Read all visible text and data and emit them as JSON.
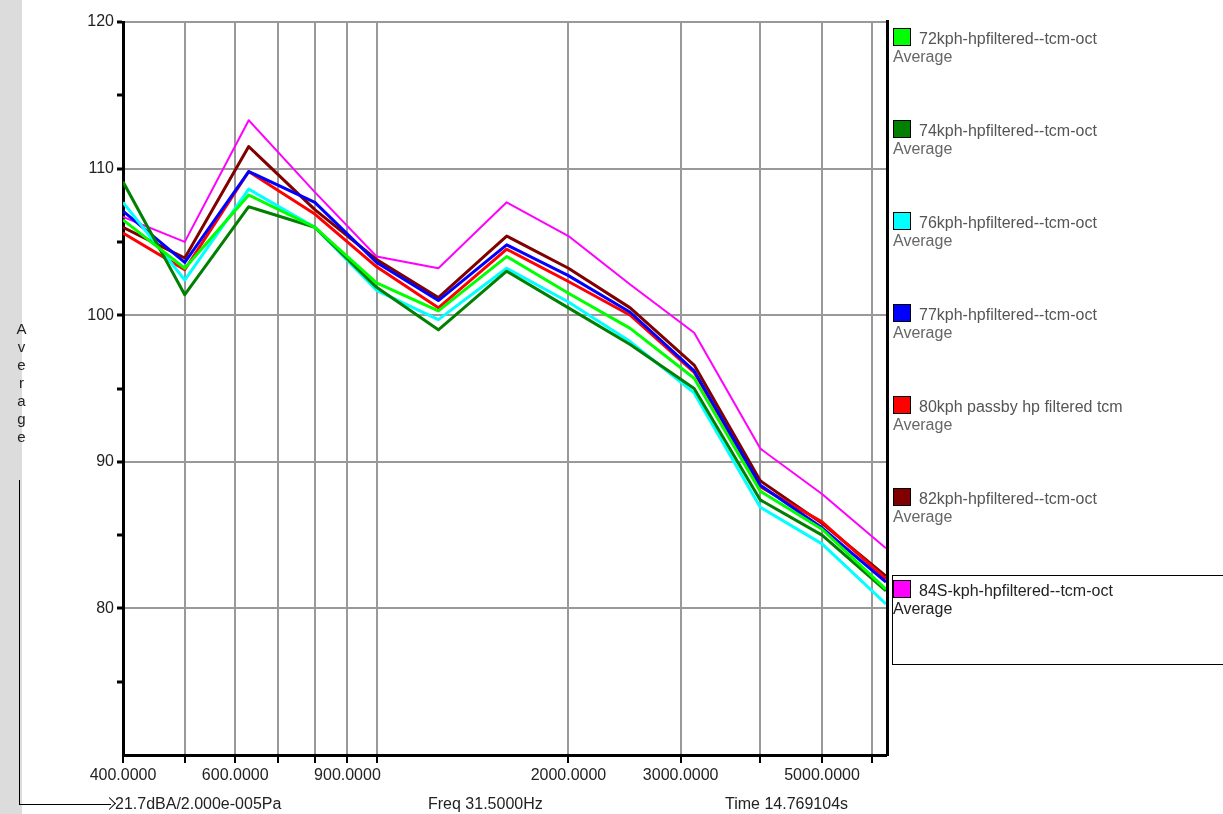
{
  "chart_data": {
    "type": "line",
    "ylabel": "Average",
    "log": "x",
    "grid": true,
    "legend": "right",
    "x": [
      400,
      500,
      630,
      800,
      1000,
      1250,
      1600,
      2000,
      2500,
      3150,
      4000,
      5000,
      6300
    ],
    "xlim": [
      400,
      6300
    ],
    "xticks": [
      {
        "value": 400,
        "label": "400.0000"
      },
      {
        "value": 500,
        "label": null
      },
      {
        "value": 600,
        "label": "600.0000"
      },
      {
        "value": 700,
        "label": null
      },
      {
        "value": 800,
        "label": null
      },
      {
        "value": 900,
        "label": "900.0000"
      },
      {
        "value": 1000,
        "label": null
      },
      {
        "value": 2000,
        "label": "2000.0000"
      },
      {
        "value": 3000,
        "label": "3000.0000"
      },
      {
        "value": 4000,
        "label": null
      },
      {
        "value": 5000,
        "label": "5000.0000"
      },
      {
        "value": 6000,
        "label": null
      }
    ],
    "ylim": [
      70,
      120
    ],
    "yticks": [
      {
        "value": 75,
        "label": null
      },
      80,
      {
        "value": 85,
        "label": null
      },
      90,
      {
        "value": 95,
        "label": null
      },
      100,
      {
        "value": 105,
        "label": null
      },
      110,
      {
        "value": 115,
        "label": null
      },
      120
    ],
    "annotations": [
      "21.7dBA/2.000e-005Pa",
      "Freq 31.5000Hz",
      "Time 14.769104s"
    ],
    "series": [
      {
        "name": "72kph-hpfiltered--tcm-oct",
        "color": "#00ff00",
        "values": [
          106.5,
          103.2,
          108.2,
          106.0,
          102.2,
          100.3,
          104.0,
          101.5,
          99.1,
          95.7,
          88.0,
          85.4,
          81.3
        ]
      },
      {
        "name": "74kph-hpfiltered--tcm-oct",
        "color": "#008000",
        "values": [
          109.1,
          101.4,
          107.4,
          106.0,
          101.9,
          99.0,
          103.0,
          100.5,
          98.0,
          95.0,
          87.4,
          85.0,
          81.2
        ]
      },
      {
        "name": "76kph-hpfiltered--tcm-oct",
        "color": "#00ffff",
        "values": [
          107.7,
          102.4,
          108.6,
          106.0,
          101.7,
          99.7,
          103.2,
          100.9,
          98.2,
          94.7,
          86.9,
          84.4,
          80.3
        ]
      },
      {
        "name": "77kph-hpfiltered--tcm-oct",
        "color": "#0000ff",
        "values": [
          107.1,
          103.6,
          109.8,
          107.7,
          103.6,
          101.0,
          104.8,
          102.7,
          100.2,
          96.2,
          88.4,
          85.5,
          81.8
        ]
      },
      {
        "name": "80kph passby hp filtered tcm",
        "color": "#ff0000",
        "values": [
          105.6,
          103.1,
          109.8,
          106.9,
          103.3,
          100.5,
          104.5,
          102.3,
          100.0,
          96.1,
          88.3,
          85.9,
          82.0
        ]
      },
      {
        "name": "82kph-hpfiltered--tcm-oct",
        "color": "#800000",
        "values": [
          106.0,
          103.9,
          111.5,
          107.2,
          103.8,
          101.2,
          105.4,
          103.2,
          100.5,
          96.6,
          88.7,
          85.8,
          82.2
        ]
      },
      {
        "name": "84S-kph-hpfiltered--tcm-oct",
        "color": "#ff00ff",
        "values": [
          106.7,
          105.0,
          113.3,
          108.4,
          104.0,
          103.2,
          107.7,
          105.4,
          102.1,
          98.8,
          90.9,
          87.8,
          84.1
        ]
      }
    ]
  }
}
